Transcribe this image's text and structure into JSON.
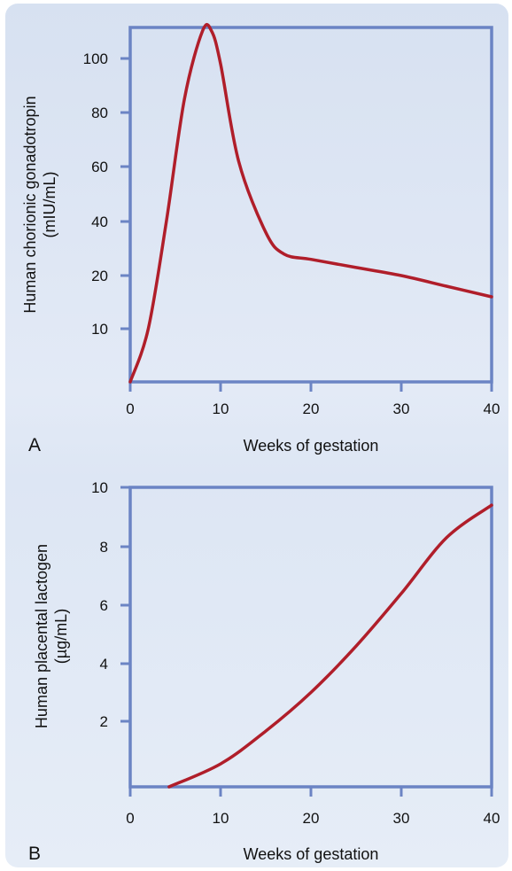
{
  "chart_data": [
    {
      "panel_label": "A",
      "type": "line",
      "xlabel": "Weeks of gestation",
      "ylabel": [
        "Human chorionic gonadotropin",
        "(mIU/mL)"
      ],
      "xlim": [
        0,
        40
      ],
      "ylim": [
        0,
        110
      ],
      "x_ticks": [
        "0",
        "10",
        "20",
        "30",
        "40"
      ],
      "y_ticks": [
        "10",
        "20",
        "40",
        "60",
        "80",
        "100"
      ],
      "grid": false,
      "series_color": "#b01e2a",
      "axis_color": "#6b84c4",
      "points": [
        [
          0,
          0
        ],
        [
          2,
          10
        ],
        [
          4,
          40
        ],
        [
          6,
          85
        ],
        [
          8,
          110
        ],
        [
          9,
          112
        ],
        [
          10,
          98
        ],
        [
          12,
          62
        ],
        [
          15,
          36
        ],
        [
          17,
          28
        ],
        [
          20,
          26
        ],
        [
          25,
          23
        ],
        [
          30,
          20
        ],
        [
          35,
          18
        ],
        [
          40,
          16
        ]
      ]
    },
    {
      "panel_label": "B",
      "type": "line",
      "xlabel": "Weeks of gestation",
      "ylabel": [
        "Human placental lactogen",
        "(µg/mL)"
      ],
      "xlim": [
        0,
        40
      ],
      "ylim": [
        0,
        10
      ],
      "x_ticks": [
        "0",
        "10",
        "20",
        "30",
        "40"
      ],
      "y_ticks": [
        "2",
        "4",
        "6",
        "8",
        "10"
      ],
      "grid": false,
      "series_color": "#b01e2a",
      "axis_color": "#6b84c4",
      "points": [
        [
          4.3,
          0
        ],
        [
          10,
          0.7
        ],
        [
          15,
          1.7
        ],
        [
          20,
          3.0
        ],
        [
          25,
          4.6
        ],
        [
          30,
          6.4
        ],
        [
          35,
          8.3
        ],
        [
          40,
          9.4
        ]
      ]
    }
  ]
}
